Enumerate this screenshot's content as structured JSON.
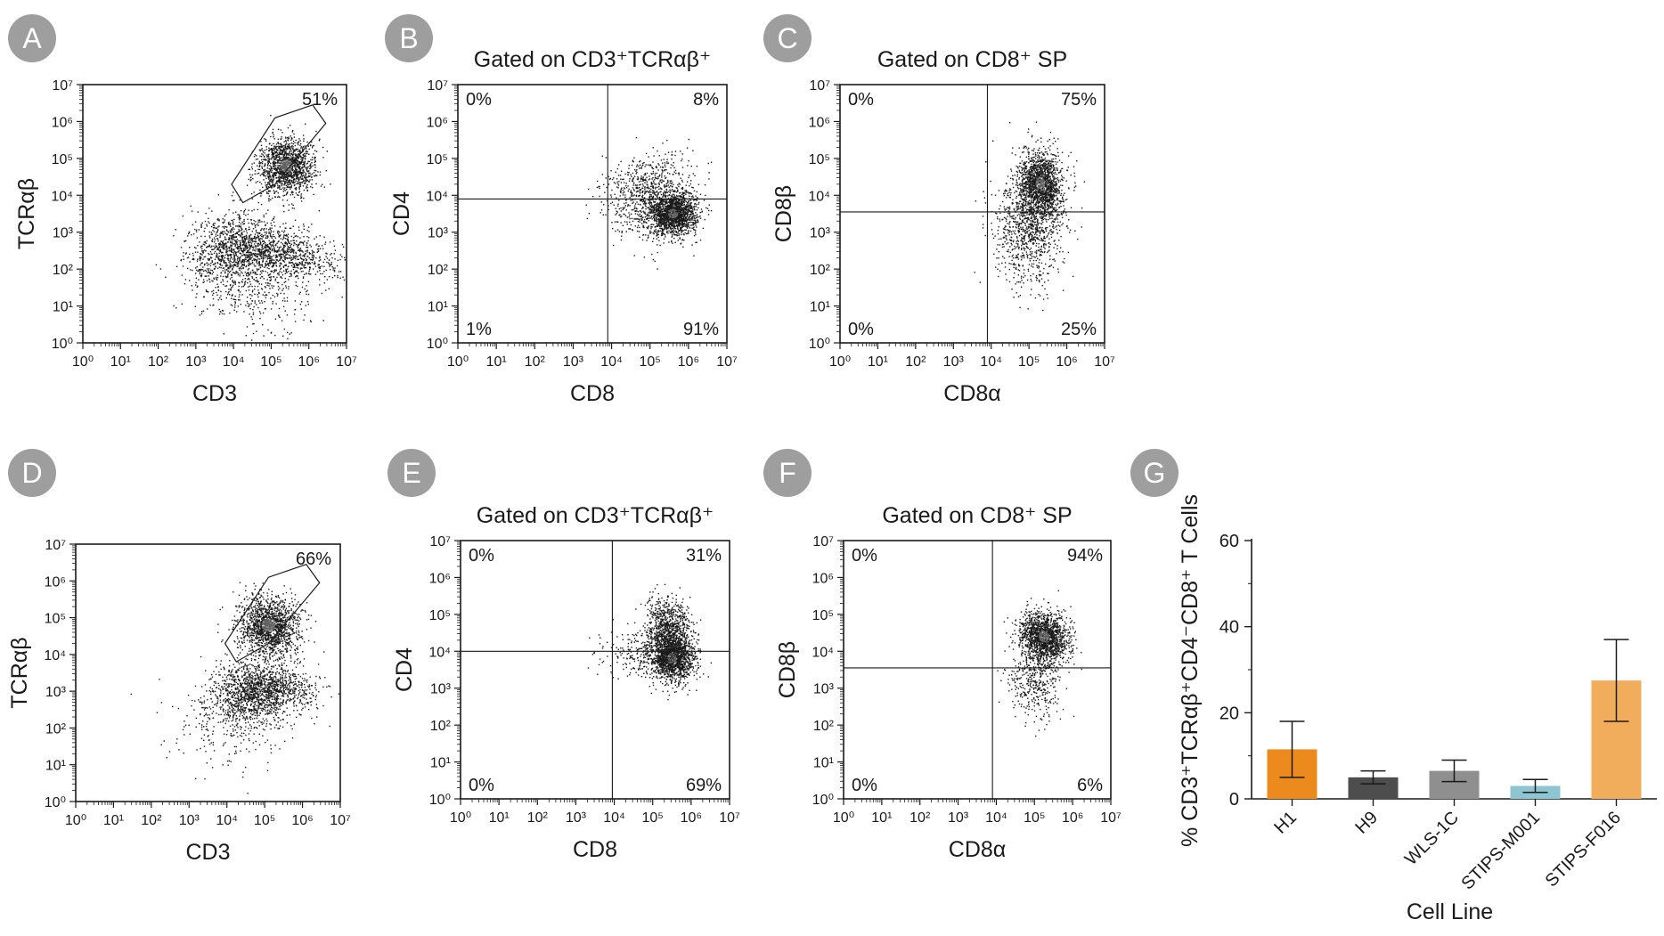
{
  "chart_data": [
    {
      "panel": "A",
      "type": "scatter",
      "title": "",
      "xlabel": "CD3",
      "ylabel": "TCRαβ",
      "scale": "log",
      "x_ticks": [
        "10⁰",
        "10¹",
        "10²",
        "10³",
        "10⁴",
        "10⁵",
        "10⁶",
        "10⁷"
      ],
      "y_ticks": [
        "10⁰",
        "10¹",
        "10²",
        "10³",
        "10⁴",
        "10⁵",
        "10⁶",
        "10⁷"
      ],
      "gate_label": "51%",
      "clusters": [
        {
          "cx": 5.4,
          "cy": 4.8,
          "sx": 0.38,
          "sy": 0.38,
          "n": 1400,
          "rot": 0.75
        },
        {
          "cx": 4.0,
          "cy": 2.5,
          "sx": 0.65,
          "sy": 0.55,
          "n": 1100,
          "rot": 0.3
        },
        {
          "cx": 5.3,
          "cy": 2.4,
          "sx": 0.35,
          "sy": 0.75,
          "n": 900,
          "rot": 1.4
        },
        {
          "cx": 4.6,
          "cy": 1.3,
          "sx": 0.7,
          "sy": 0.6,
          "n": 250,
          "rot": 0
        }
      ]
    },
    {
      "panel": "B",
      "type": "scatter",
      "title": "Gated on CD3⁺TCRαβ⁺",
      "xlabel": "CD8",
      "ylabel": "CD4",
      "scale": "log",
      "x_ticks": [
        "10⁰",
        "10¹",
        "10²",
        "10³",
        "10⁴",
        "10⁵",
        "10⁶",
        "10⁷"
      ],
      "y_ticks": [
        "10⁰",
        "10¹",
        "10²",
        "10³",
        "10⁴",
        "10⁵",
        "10⁶",
        "10⁷"
      ],
      "quadrants": {
        "tl": "0%",
        "tr": "8%",
        "bl": "1%",
        "br": "91%"
      },
      "split": [
        3.9,
        3.9
      ],
      "clusters": [
        {
          "cx": 5.6,
          "cy": 3.5,
          "sx": 0.3,
          "sy": 0.28,
          "n": 1500,
          "rot": 0
        },
        {
          "cx": 5.0,
          "cy": 4.0,
          "sx": 0.6,
          "sy": 0.55,
          "n": 900,
          "rot": 0.3
        }
      ]
    },
    {
      "panel": "C",
      "type": "scatter",
      "title": "Gated on CD8⁺ SP",
      "xlabel": "CD8α",
      "ylabel": "CD8β",
      "scale": "log",
      "x_ticks": [
        "10⁰",
        "10¹",
        "10²",
        "10³",
        "10⁴",
        "10⁵",
        "10⁶",
        "10⁷"
      ],
      "y_ticks": [
        "10⁰",
        "10¹",
        "10²",
        "10³",
        "10⁴",
        "10⁵",
        "10⁶",
        "10⁷"
      ],
      "quadrants": {
        "tl": "0%",
        "tr": "75%",
        "bl": "0%",
        "br": "25%"
      },
      "split": [
        3.9,
        3.55
      ],
      "clusters": [
        {
          "cx": 5.3,
          "cy": 4.3,
          "sx": 0.28,
          "sy": 0.45,
          "n": 1500,
          "rot": 0
        },
        {
          "cx": 5.0,
          "cy": 3.1,
          "sx": 0.45,
          "sy": 0.75,
          "n": 1000,
          "rot": 0
        }
      ]
    },
    {
      "panel": "D",
      "type": "scatter",
      "title": "",
      "xlabel": "CD3",
      "ylabel": "TCRαβ",
      "scale": "log",
      "x_ticks": [
        "10⁰",
        "10¹",
        "10²",
        "10³",
        "10⁴",
        "10⁵",
        "10⁶",
        "10⁷"
      ],
      "y_ticks": [
        "10⁰",
        "10¹",
        "10²",
        "10³",
        "10⁴",
        "10⁵",
        "10⁶",
        "10⁷"
      ],
      "gate_label": "66%",
      "clusters": [
        {
          "cx": 5.1,
          "cy": 4.8,
          "sx": 0.38,
          "sy": 0.42,
          "n": 1500,
          "rot": 0.8
        },
        {
          "cx": 4.6,
          "cy": 2.9,
          "sx": 0.55,
          "sy": 0.45,
          "n": 900,
          "rot": 0.2
        },
        {
          "cx": 5.2,
          "cy": 3.1,
          "sx": 0.3,
          "sy": 0.6,
          "n": 700,
          "rot": 1.4
        },
        {
          "cx": 4.0,
          "cy": 2.1,
          "sx": 0.7,
          "sy": 0.6,
          "n": 200,
          "rot": 0
        }
      ]
    },
    {
      "panel": "E",
      "type": "scatter",
      "title": "Gated on CD3⁺TCRαβ⁺",
      "xlabel": "CD8",
      "ylabel": "CD4",
      "scale": "log",
      "x_ticks": [
        "10⁰",
        "10¹",
        "10²",
        "10³",
        "10⁴",
        "10⁵",
        "10⁶",
        "10⁷"
      ],
      "y_ticks": [
        "10⁰",
        "10¹",
        "10²",
        "10³",
        "10⁴",
        "10⁵",
        "10⁶",
        "10⁷"
      ],
      "quadrants": {
        "tl": "0%",
        "tr": "31%",
        "bl": "0%",
        "br": "69%"
      },
      "split": [
        3.95,
        4.0
      ],
      "clusters": [
        {
          "cx": 5.5,
          "cy": 3.8,
          "sx": 0.3,
          "sy": 0.32,
          "n": 1400,
          "rot": 0
        },
        {
          "cx": 5.4,
          "cy": 4.6,
          "sx": 0.3,
          "sy": 0.4,
          "n": 900,
          "rot": 0
        },
        {
          "cx": 4.6,
          "cy": 3.9,
          "sx": 0.5,
          "sy": 0.3,
          "n": 200,
          "rot": 0
        }
      ]
    },
    {
      "panel": "F",
      "type": "scatter",
      "title": "Gated on CD8⁺ SP",
      "xlabel": "CD8α",
      "ylabel": "CD8β",
      "scale": "log",
      "x_ticks": [
        "10⁰",
        "10¹",
        "10²",
        "10³",
        "10⁴",
        "10⁵",
        "10⁶",
        "10⁷"
      ],
      "y_ticks": [
        "10⁰",
        "10¹",
        "10²",
        "10³",
        "10⁴",
        "10⁵",
        "10⁶",
        "10⁷"
      ],
      "quadrants": {
        "tl": "0%",
        "tr": "94%",
        "bl": "0%",
        "br": "6%"
      },
      "split": [
        3.9,
        3.55
      ],
      "clusters": [
        {
          "cx": 5.25,
          "cy": 4.4,
          "sx": 0.3,
          "sy": 0.35,
          "n": 1500,
          "rot": 0.6
        },
        {
          "cx": 5.0,
          "cy": 3.3,
          "sx": 0.35,
          "sy": 0.55,
          "n": 450,
          "rot": 0
        }
      ]
    },
    {
      "panel": "G",
      "type": "bar",
      "title": "",
      "xlabel": "Cell Line",
      "ylabel": "% CD3⁺TCRαβ⁺CD4⁻CD8⁺ T Cells",
      "ylim": [
        0,
        60
      ],
      "yticks": [
        0,
        20,
        40,
        60
      ],
      "categories": [
        "H1",
        "H9",
        "WLS-1C",
        "STIPS-M001",
        "STIPS-F016"
      ],
      "values": [
        11.5,
        5,
        6.5,
        3,
        27.5
      ],
      "errors": [
        6.5,
        1.5,
        2.5,
        1.5,
        9.5
      ],
      "colors": [
        "#ec8a1e",
        "#4d4d4d",
        "#8f8f8f",
        "#8ec5d3",
        "#f1ad5c"
      ]
    }
  ],
  "badges": [
    "A",
    "B",
    "C",
    "D",
    "E",
    "F",
    "G"
  ],
  "colors": {
    "badge": "#9e9e9e",
    "axis": "#1a1a1a",
    "dot": "#1a1a1a"
  }
}
